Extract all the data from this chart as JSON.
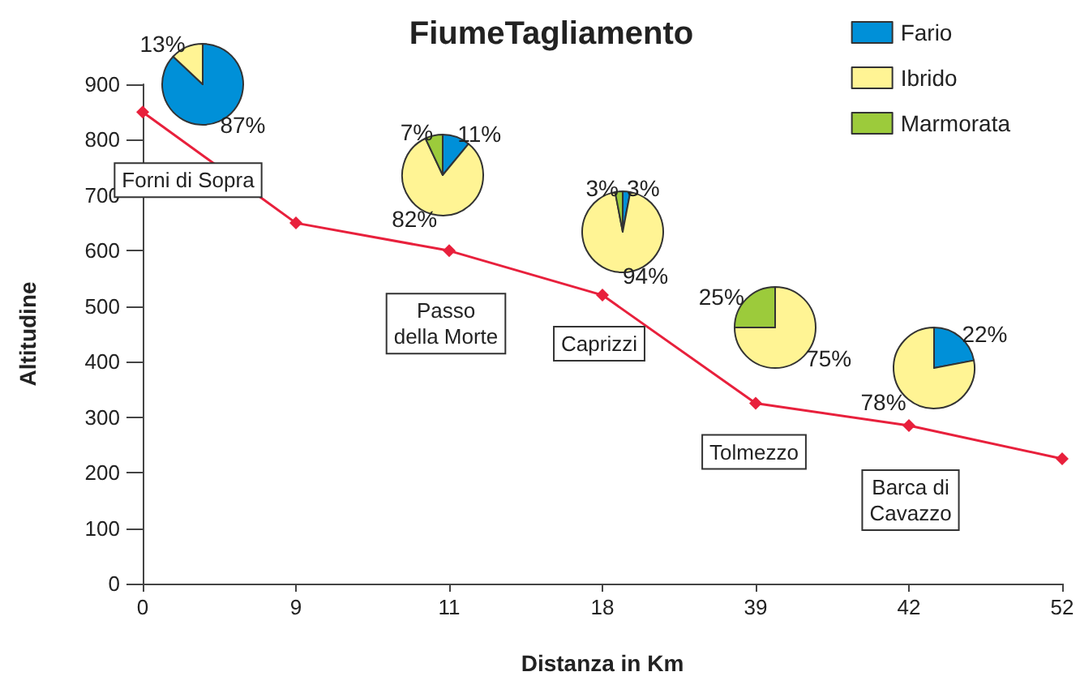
{
  "chart_data": [
    {
      "type": "line",
      "title": "FiumeTagliamento",
      "xlabel": "Distanza in Km",
      "ylabel": "Altitudine",
      "categories": [
        "0",
        "9",
        "11",
        "18",
        "39",
        "42",
        "52"
      ],
      "series": [
        {
          "color": "#e8203c",
          "values": [
            850,
            650,
            600,
            520,
            325,
            285,
            225
          ]
        }
      ],
      "ylim": [
        0,
        900
      ],
      "yticks": [
        0,
        100,
        200,
        300,
        400,
        500,
        600,
        700,
        800,
        900
      ],
      "grid": false,
      "marker": "diamond",
      "line_style": "solid",
      "annotations": [
        {
          "text": "Forni di Sopra",
          "x": "0",
          "y": 850
        },
        {
          "text": "Passo\ndella Morte",
          "x": "11",
          "y": 600
        },
        {
          "text": "Caprizzi",
          "x": "18",
          "y": 520
        },
        {
          "text": "Tolmezzo",
          "x": "39",
          "y": 325
        },
        {
          "text": "Barca di\nCavazzo",
          "x": "42",
          "y": 285
        }
      ]
    },
    {
      "type": "pie",
      "categories": [
        "Fario",
        "Ibrido",
        "Marmorata"
      ],
      "values": [
        87,
        13,
        0
      ],
      "colors": [
        "#0090d8",
        "#fff494",
        "#9ccb3b"
      ],
      "value_labels": [
        "87%",
        "13%",
        null
      ],
      "legend": "top right"
    },
    {
      "type": "pie",
      "categories": [
        null,
        null,
        null
      ],
      "values": [
        11,
        82,
        7
      ],
      "colors": [
        "#0090d8",
        "#fff494",
        "#9ccb3b"
      ],
      "value_labels": [
        "11%",
        "82%",
        "7%"
      ]
    },
    {
      "type": "pie",
      "categories": [
        null,
        null,
        null
      ],
      "values": [
        3,
        94,
        3
      ],
      "colors": [
        "#0090d8",
        "#fff494",
        "#9ccb3b"
      ],
      "value_labels": [
        "3%",
        "94%",
        "3%"
      ]
    },
    {
      "type": "pie",
      "categories": [
        null,
        null,
        null
      ],
      "values": [
        0,
        75,
        25
      ],
      "colors": [
        "#0090d8",
        "#fff494",
        "#9ccb3b"
      ],
      "value_labels": [
        null,
        "75%",
        "25%"
      ]
    },
    {
      "type": "pie",
      "categories": [
        null,
        null,
        null
      ],
      "values": [
        22,
        78,
        0
      ],
      "colors": [
        "#0090d8",
        "#fff494",
        "#9ccb3b"
      ],
      "value_labels": [
        "22%",
        "78%",
        null
      ]
    }
  ]
}
